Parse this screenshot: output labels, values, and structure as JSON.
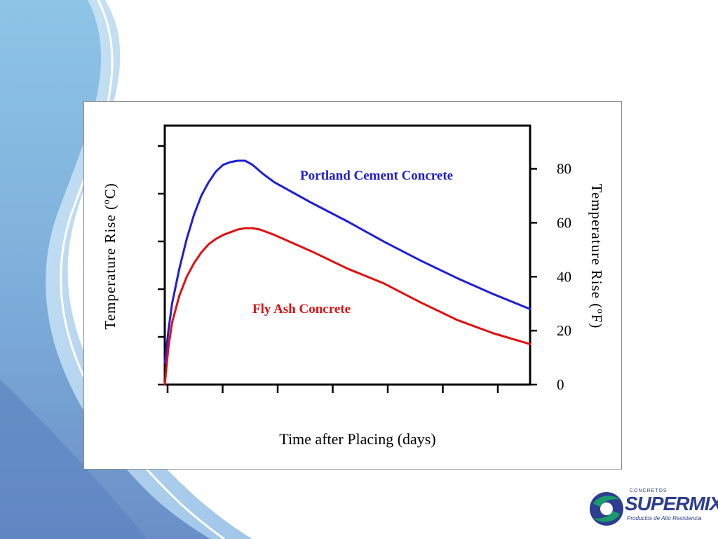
{
  "colors": {
    "portland": "#1f1fd6",
    "fly_ash": "#e01010",
    "bg_blue_dark": "#5f8fc5",
    "bg_blue_light": "#a9d3ee",
    "logo_green": "#1a9a6a",
    "logo_blue": "#2c3e8f"
  },
  "chart_data": {
    "type": "line",
    "title": "",
    "xlabel": "Time after Placing (days)",
    "ylabel_left": "Temperature Rise (ºC)",
    "ylabel_right": "Temperature Rise (ºF)",
    "y_right_ticks": [
      "0",
      "20",
      "40",
      "60",
      "80"
    ],
    "y_right_range": [
      0,
      96
    ],
    "x_range": [
      0,
      10
    ],
    "grid": false,
    "series": [
      {
        "name": "Portland Cement Concrete",
        "color": "#1f1fd6",
        "x": [
          0,
          0.1,
          0.2,
          0.4,
          0.6,
          0.8,
          1.0,
          1.2,
          1.4,
          1.6,
          1.8,
          2.0,
          2.2,
          2.4,
          2.7,
          3.0,
          4.0,
          5.0,
          6.0,
          7.0,
          8.0,
          9.0,
          10.0
        ],
        "values": [
          8,
          20,
          30,
          43,
          54,
          63,
          70,
          75,
          79,
          81.5,
          82.5,
          83,
          83,
          81.5,
          78,
          75,
          67.5,
          60.5,
          53,
          46,
          39.5,
          33.5,
          28
        ]
      },
      {
        "name": "Fly Ash Concrete",
        "color": "#e01010",
        "x": [
          0,
          0.1,
          0.2,
          0.4,
          0.6,
          0.8,
          1.0,
          1.2,
          1.4,
          1.6,
          1.8,
          2.0,
          2.2,
          2.4,
          2.6,
          2.8,
          3.0,
          4.0,
          5.0,
          6.0,
          7.0,
          8.0,
          9.0,
          10.0
        ],
        "values": [
          0,
          14,
          23,
          33,
          40,
          45,
          49,
          52,
          54,
          55.5,
          56.5,
          57.5,
          58,
          58,
          57.5,
          56.5,
          55.5,
          49.5,
          43,
          37.5,
          30.5,
          24,
          19,
          15
        ]
      }
    ]
  },
  "logo": {
    "brand": "SUPERMIX",
    "top_text": "CONCRETOS",
    "subtitle": "Productos de Alto Resistencia"
  }
}
